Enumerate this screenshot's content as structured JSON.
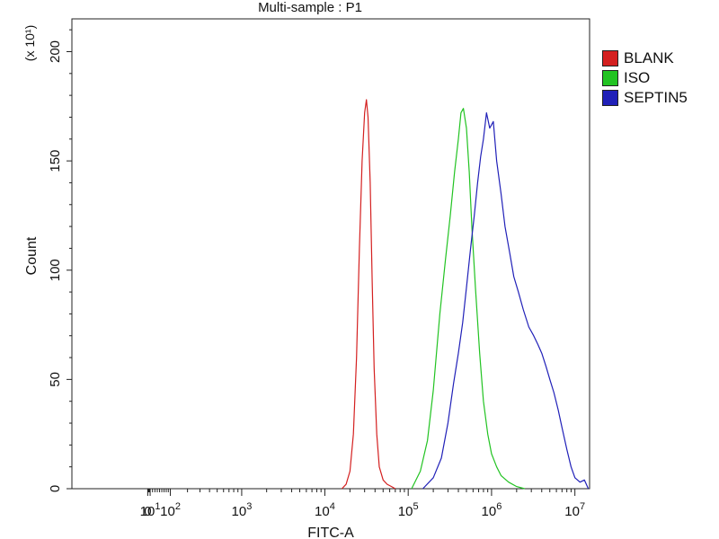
{
  "chart_data": {
    "type": "line",
    "title": "Multi-sample : P1",
    "xlabel": "FITC-A",
    "ylabel": "Count",
    "y_multiplier": "(x 10¹)",
    "x_scale": "biexponential",
    "xlim": [
      -600,
      15000000
    ],
    "ylim": [
      0,
      215
    ],
    "y_ticks": [
      0,
      50,
      100,
      150,
      200
    ],
    "x_ticks": [
      {
        "value": 0,
        "label": "0"
      },
      {
        "value": 10,
        "base": "10",
        "exp": "1"
      },
      {
        "value": 100,
        "base": "10",
        "exp": "2"
      },
      {
        "value": 1000,
        "base": "10",
        "exp": "3"
      },
      {
        "value": 10000,
        "base": "10",
        "exp": "4"
      },
      {
        "value": 100000,
        "base": "10",
        "exp": "5"
      },
      {
        "value": 1000000,
        "base": "10",
        "exp": "6"
      },
      {
        "value": 10000000,
        "base": "10",
        "exp": "7"
      }
    ],
    "legend_position": "right",
    "series": [
      {
        "name": "BLANK",
        "color": "#d42020",
        "x": [
          16000,
          18000,
          20000,
          22000,
          24000,
          26000,
          28000,
          30000,
          31500,
          33000,
          35000,
          37000,
          39000,
          42000,
          45000,
          50000,
          56000,
          63000,
          70000
        ],
        "y": [
          0,
          2,
          8,
          25,
          60,
          110,
          150,
          172,
          178,
          170,
          140,
          95,
          55,
          25,
          10,
          4,
          2,
          1,
          0
        ]
      },
      {
        "name": "ISO",
        "color": "#22c322",
        "x": [
          110000,
          140000,
          170000,
          200000,
          240000,
          280000,
          320000,
          360000,
          400000,
          430000,
          460000,
          500000,
          540000,
          580000,
          640000,
          720000,
          800000,
          900000,
          1000000,
          1150000,
          1300000,
          1600000,
          2000000,
          2500000
        ],
        "y": [
          0,
          8,
          22,
          45,
          80,
          105,
          125,
          145,
          160,
          172,
          174,
          165,
          145,
          120,
          92,
          62,
          40,
          25,
          16,
          10,
          6,
          3,
          1,
          0
        ]
      },
      {
        "name": "SEPTIN5",
        "color": "#2020b8",
        "x": [
          150000,
          200000,
          250000,
          300000,
          350000,
          400000,
          450000,
          500000,
          560000,
          620000,
          680000,
          740000,
          800000,
          870000,
          950000,
          1050000,
          1150000,
          1300000,
          1450000,
          1650000,
          1850000,
          2100000,
          2400000,
          2800000,
          3200000,
          3600000,
          4000000,
          4500000,
          5000000,
          5600000,
          6300000,
          7000000,
          8000000,
          9000000,
          10000000,
          11500000,
          13000000,
          14500000
        ],
        "y": [
          0,
          5,
          14,
          30,
          48,
          62,
          76,
          92,
          110,
          125,
          140,
          152,
          160,
          172,
          165,
          168,
          150,
          135,
          120,
          108,
          97,
          90,
          82,
          74,
          70,
          66,
          62,
          56,
          50,
          44,
          36,
          28,
          18,
          10,
          5,
          3,
          4,
          0
        ]
      }
    ]
  }
}
